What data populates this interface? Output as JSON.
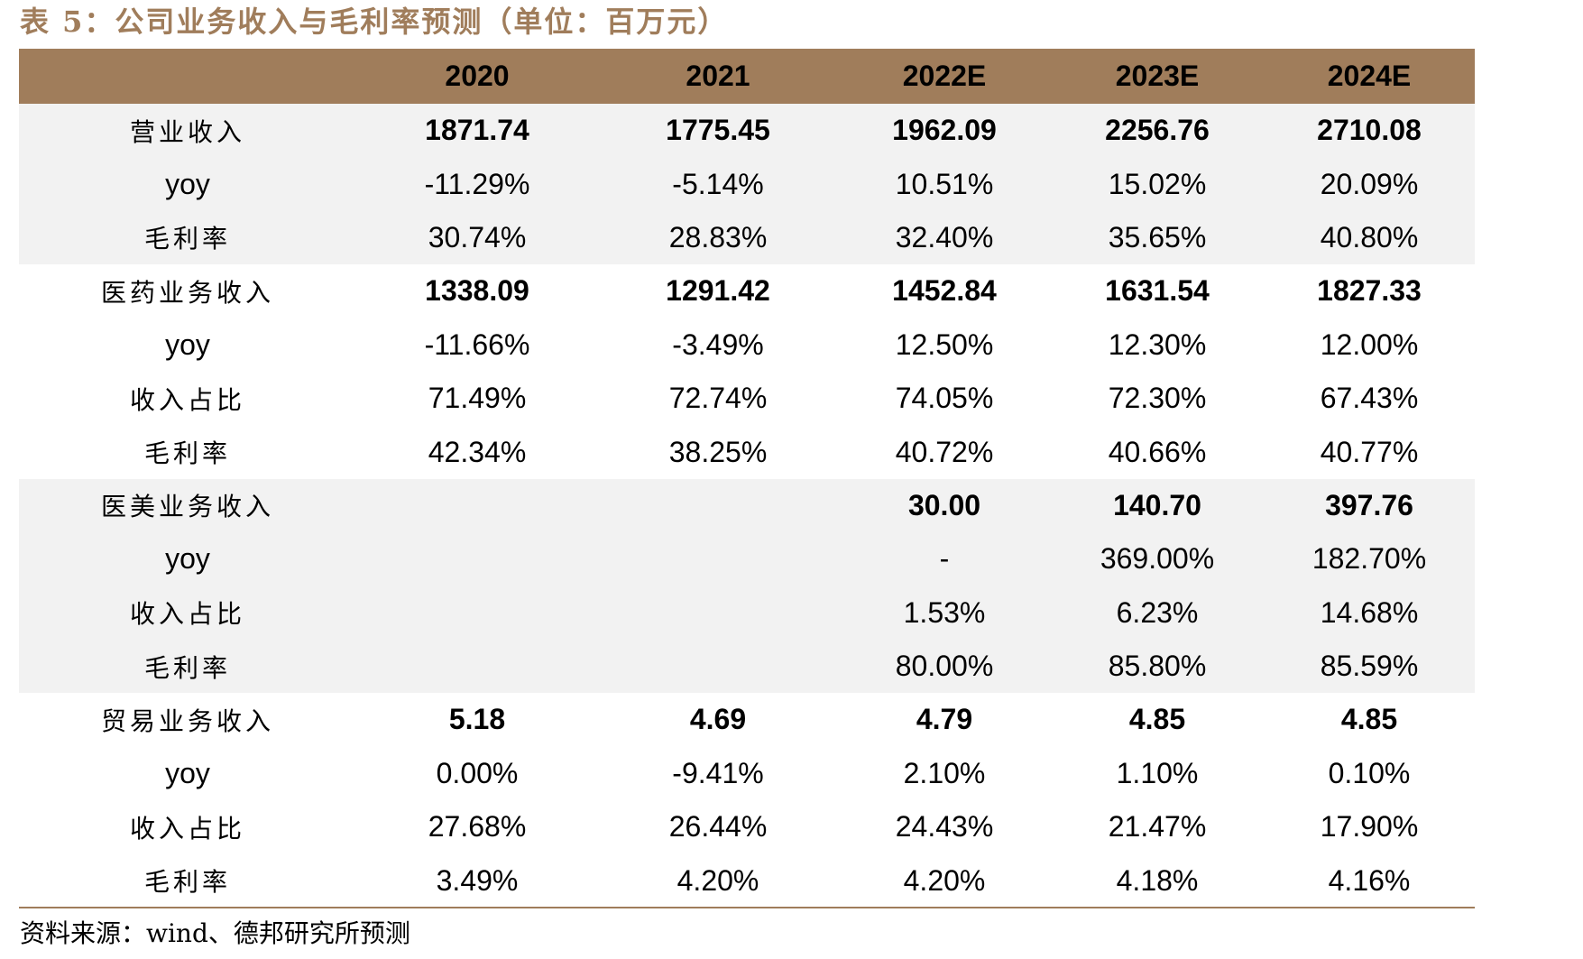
{
  "caption": "表 5：公司业务收入与毛利率预测（单位：百万元）",
  "table": {
    "header": [
      "",
      "2020",
      "2021",
      "2022E",
      "2023E",
      "2024E"
    ],
    "rows": [
      {
        "label": "营业收入",
        "values": [
          "1871.74",
          "1775.45",
          "1962.09",
          "2256.76",
          "2710.08"
        ],
        "bold": true,
        "shade": true
      },
      {
        "label": "yoy",
        "values": [
          "-11.29%",
          "-5.14%",
          "10.51%",
          "15.02%",
          "20.09%"
        ],
        "bold": false,
        "shade": true
      },
      {
        "label": "毛利率",
        "values": [
          "30.74%",
          "28.83%",
          "32.40%",
          "35.65%",
          "40.80%"
        ],
        "bold": false,
        "shade": true
      },
      {
        "label": "医药业务收入",
        "values": [
          "1338.09",
          "1291.42",
          "1452.84",
          "1631.54",
          "1827.33"
        ],
        "bold": true,
        "shade": false
      },
      {
        "label": "yoy",
        "values": [
          "-11.66%",
          "-3.49%",
          "12.50%",
          "12.30%",
          "12.00%"
        ],
        "bold": false,
        "shade": false
      },
      {
        "label": "收入占比",
        "values": [
          "71.49%",
          "72.74%",
          "74.05%",
          "72.30%",
          "67.43%"
        ],
        "bold": false,
        "shade": false
      },
      {
        "label": "毛利率",
        "values": [
          "42.34%",
          "38.25%",
          "40.72%",
          "40.66%",
          "40.77%"
        ],
        "bold": false,
        "shade": false
      },
      {
        "label": "医美业务收入",
        "values": [
          "",
          "",
          "30.00",
          "140.70",
          "397.76"
        ],
        "bold": true,
        "shade": true
      },
      {
        "label": "yoy",
        "values": [
          "",
          "",
          "-",
          "369.00%",
          "182.70%"
        ],
        "bold": false,
        "shade": true
      },
      {
        "label": "收入占比",
        "values": [
          "",
          "",
          "1.53%",
          "6.23%",
          "14.68%"
        ],
        "bold": false,
        "shade": true
      },
      {
        "label": "毛利率",
        "values": [
          "",
          "",
          "80.00%",
          "85.80%",
          "85.59%"
        ],
        "bold": false,
        "shade": true
      },
      {
        "label": "贸易业务收入",
        "values": [
          "5.18",
          "4.69",
          "4.79",
          "4.85",
          "4.85"
        ],
        "bold": true,
        "shade": false
      },
      {
        "label": "yoy",
        "values": [
          "0.00%",
          "-9.41%",
          "2.10%",
          "1.10%",
          "0.10%"
        ],
        "bold": false,
        "shade": false
      },
      {
        "label": "收入占比",
        "values": [
          "27.68%",
          "26.44%",
          "24.43%",
          "21.47%",
          "17.90%"
        ],
        "bold": false,
        "shade": false
      },
      {
        "label": "毛利率",
        "values": [
          "3.49%",
          "4.20%",
          "4.20%",
          "4.18%",
          "4.16%"
        ],
        "bold": false,
        "shade": false
      }
    ]
  },
  "source": "资料来源：wind、德邦研究所预测",
  "colors": {
    "accent": "#A07D5B",
    "shade": "#F2F2F2"
  }
}
